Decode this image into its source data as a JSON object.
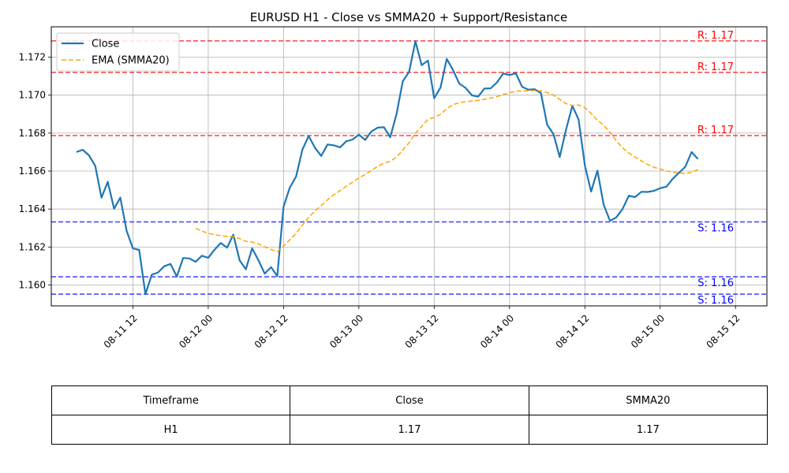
{
  "chart_data": {
    "type": "line",
    "title": "EURUSD H1 - Close vs SMMA20 + Support/Resistance",
    "xlabel": "",
    "ylabel": "",
    "x_start": "2025-08-11 03:00",
    "x_step_hours": 1,
    "xlim": [
      "2025-08-10 23:00",
      "2025-08-15 17:00"
    ],
    "ylim": [
      1.1589,
      1.1736
    ],
    "x_ticks": [
      {
        "t": "2025-08-11 12:00",
        "label": "08-11 12"
      },
      {
        "t": "2025-08-12 00:00",
        "label": "08-12 00"
      },
      {
        "t": "2025-08-12 12:00",
        "label": "08-12 12"
      },
      {
        "t": "2025-08-13 00:00",
        "label": "08-13 00"
      },
      {
        "t": "2025-08-13 12:00",
        "label": "08-13 12"
      },
      {
        "t": "2025-08-14 00:00",
        "label": "08-14 00"
      },
      {
        "t": "2025-08-14 12:00",
        "label": "08-14 12"
      },
      {
        "t": "2025-08-15 00:00",
        "label": "08-15 00"
      },
      {
        "t": "2025-08-15 12:00",
        "label": "08-15 12"
      }
    ],
    "y_ticks": [
      {
        "v": 1.16,
        "label": "1.160"
      },
      {
        "v": 1.162,
        "label": "1.162"
      },
      {
        "v": 1.164,
        "label": "1.164"
      },
      {
        "v": 1.166,
        "label": "1.166"
      },
      {
        "v": 1.168,
        "label": "1.168"
      },
      {
        "v": 1.17,
        "label": "1.170"
      },
      {
        "v": 1.172,
        "label": "1.172"
      }
    ],
    "grid": true,
    "legend_position": "top-left",
    "series": [
      {
        "name": "Close",
        "color": "#1f77b4",
        "style": "solid",
        "start_index": 0,
        "values": [
          1.167,
          1.16712,
          1.16683,
          1.16628,
          1.1646,
          1.16543,
          1.16402,
          1.1646,
          1.16285,
          1.16193,
          1.16185,
          1.15952,
          1.16054,
          1.16066,
          1.16099,
          1.16111,
          1.16044,
          1.16142,
          1.1614,
          1.16122,
          1.16154,
          1.16143,
          1.16186,
          1.16221,
          1.16197,
          1.16265,
          1.1613,
          1.16083,
          1.16193,
          1.1613,
          1.1606,
          1.16094,
          1.16047,
          1.16413,
          1.16513,
          1.16572,
          1.16712,
          1.16785,
          1.16723,
          1.1668,
          1.1674,
          1.16736,
          1.16725,
          1.16757,
          1.16766,
          1.16792,
          1.16764,
          1.16809,
          1.16829,
          1.16831,
          1.16778,
          1.16901,
          1.17073,
          1.17123,
          1.17284,
          1.17158,
          1.17182,
          1.16984,
          1.1704,
          1.17191,
          1.17132,
          1.17061,
          1.17038,
          1.16999,
          1.16992,
          1.17035,
          1.17036,
          1.17067,
          1.17114,
          1.17106,
          1.17115,
          1.17044,
          1.17029,
          1.17031,
          1.17011,
          1.16844,
          1.16795,
          1.16674,
          1.16818,
          1.16944,
          1.16872,
          1.16629,
          1.16492,
          1.16602,
          1.16423,
          1.16338,
          1.16356,
          1.164,
          1.1647,
          1.16463,
          1.16491,
          1.1649,
          1.16496,
          1.1651,
          1.16518,
          1.1656,
          1.16591,
          1.16623,
          1.167,
          1.16664
        ]
      },
      {
        "name": "EMA (SMMA20)",
        "color": "#ffa500",
        "style": "dashed",
        "start_index": 19,
        "values": [
          1.16299,
          1.16284,
          1.16272,
          1.16265,
          1.1626,
          1.16256,
          1.16256,
          1.16244,
          1.1623,
          1.16226,
          1.16216,
          1.16201,
          1.16187,
          1.16175,
          1.16205,
          1.16238,
          1.16272,
          1.16315,
          1.16356,
          1.1639,
          1.16418,
          1.16449,
          1.16475,
          1.16497,
          1.1652,
          1.16542,
          1.16564,
          1.16582,
          1.16603,
          1.16626,
          1.16641,
          1.16652,
          1.16673,
          1.16711,
          1.16749,
          1.168,
          1.16835,
          1.16872,
          1.16883,
          1.16899,
          1.16929,
          1.1695,
          1.1696,
          1.16966,
          1.16969,
          1.16972,
          1.16978,
          1.16985,
          1.16992,
          1.17003,
          1.17013,
          1.17021,
          1.17023,
          1.17023,
          1.17024,
          1.17023,
          1.17014,
          1.17,
          1.16978,
          1.16955,
          1.16946,
          1.16948,
          1.16934,
          1.16904,
          1.16868,
          1.16841,
          1.16803,
          1.1676,
          1.16722,
          1.16695,
          1.16673,
          1.16654,
          1.16635,
          1.1662,
          1.16611,
          1.16601,
          1.16594,
          1.16591,
          1.16587,
          1.16594,
          1.16608
        ]
      }
    ],
    "resistance_levels": [
      {
        "value": 1.17286,
        "label": "R: 1.17"
      },
      {
        "value": 1.1712,
        "label": "R: 1.17"
      },
      {
        "value": 1.16787,
        "label": "R: 1.17"
      }
    ],
    "support_levels": [
      {
        "value": 1.16332,
        "label": "S: 1.16"
      },
      {
        "value": 1.16043,
        "label": "S: 1.16"
      },
      {
        "value": 1.15952,
        "label": "S: 1.16"
      }
    ],
    "level_colors": {
      "resistance": "#ff0000",
      "support": "#0000ff"
    }
  },
  "table": {
    "headers": [
      "Timeframe",
      "Close",
      "SMMA20"
    ],
    "rows": [
      [
        "H1",
        "1.17",
        "1.17"
      ]
    ]
  }
}
